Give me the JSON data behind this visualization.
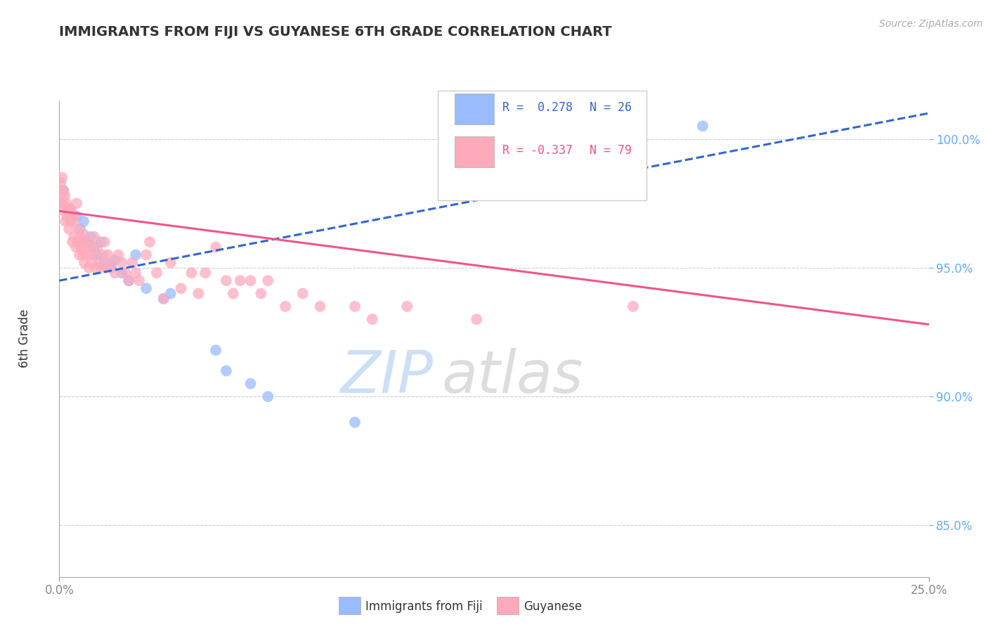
{
  "title": "IMMIGRANTS FROM FIJI VS GUYANESE 6TH GRADE CORRELATION CHART",
  "source": "Source: ZipAtlas.com",
  "ylabel": "6th Grade",
  "xlim": [
    0.0,
    25.0
  ],
  "ylim": [
    83.0,
    101.5
  ],
  "yticks": [
    85.0,
    90.0,
    95.0,
    100.0
  ],
  "ytick_labels": [
    "85.0%",
    "90.0%",
    "95.0%",
    "100.0%"
  ],
  "xticks": [
    0.0,
    25.0
  ],
  "xtick_labels": [
    "0.0%",
    "25.0%"
  ],
  "grid_color": "#cccccc",
  "background_color": "#ffffff",
  "series": [
    {
      "name": "Immigrants from Fiji",
      "color": "#99bbff",
      "R": 0.278,
      "N": 26,
      "points": [
        [
          0.05,
          97.5
        ],
        [
          0.12,
          98.0
        ],
        [
          0.3,
          97.3
        ],
        [
          0.5,
          97.0
        ],
        [
          0.6,
          96.5
        ],
        [
          0.7,
          96.8
        ],
        [
          0.8,
          96.0
        ],
        [
          0.9,
          96.2
        ],
        [
          1.0,
          95.8
        ],
        [
          1.1,
          95.5
        ],
        [
          1.2,
          96.0
        ],
        [
          1.3,
          95.2
        ],
        [
          1.5,
          95.0
        ],
        [
          1.6,
          95.3
        ],
        [
          1.8,
          94.8
        ],
        [
          2.0,
          94.5
        ],
        [
          2.2,
          95.5
        ],
        [
          2.5,
          94.2
        ],
        [
          3.0,
          93.8
        ],
        [
          3.2,
          94.0
        ],
        [
          4.5,
          91.8
        ],
        [
          4.8,
          91.0
        ],
        [
          5.5,
          90.5
        ],
        [
          6.0,
          90.0
        ],
        [
          8.5,
          89.0
        ],
        [
          18.5,
          100.5
        ]
      ],
      "trend_x": [
        0.0,
        25.0
      ],
      "trend_y": [
        94.5,
        101.0
      ],
      "trend_color": "#3366cc",
      "trend_style": "--"
    },
    {
      "name": "Guyanese",
      "color": "#ffaabb",
      "R": -0.337,
      "N": 79,
      "points": [
        [
          0.04,
          98.3
        ],
        [
          0.06,
          97.8
        ],
        [
          0.08,
          98.5
        ],
        [
          0.1,
          97.5
        ],
        [
          0.12,
          98.0
        ],
        [
          0.14,
          97.2
        ],
        [
          0.16,
          97.8
        ],
        [
          0.18,
          96.8
        ],
        [
          0.2,
          97.5
        ],
        [
          0.22,
          97.0
        ],
        [
          0.25,
          97.3
        ],
        [
          0.28,
          96.5
        ],
        [
          0.3,
          97.0
        ],
        [
          0.32,
          96.8
        ],
        [
          0.35,
          97.2
        ],
        [
          0.38,
          96.0
        ],
        [
          0.4,
          96.8
        ],
        [
          0.42,
          96.2
        ],
        [
          0.45,
          97.0
        ],
        [
          0.48,
          95.8
        ],
        [
          0.5,
          97.5
        ],
        [
          0.52,
          96.0
        ],
        [
          0.55,
          96.5
        ],
        [
          0.58,
          95.5
        ],
        [
          0.6,
          96.2
        ],
        [
          0.62,
          95.8
        ],
        [
          0.65,
          96.0
        ],
        [
          0.68,
          95.5
        ],
        [
          0.7,
          96.3
        ],
        [
          0.72,
          95.2
        ],
        [
          0.75,
          95.8
        ],
        [
          0.8,
          95.5
        ],
        [
          0.82,
          96.0
        ],
        [
          0.85,
          95.0
        ],
        [
          0.9,
          95.8
        ],
        [
          0.92,
          95.2
        ],
        [
          0.95,
          95.5
        ],
        [
          1.0,
          96.2
        ],
        [
          1.05,
          95.0
        ],
        [
          1.1,
          95.8
        ],
        [
          1.15,
          95.2
        ],
        [
          1.2,
          95.0
        ],
        [
          1.25,
          95.5
        ],
        [
          1.3,
          96.0
        ],
        [
          1.35,
          95.0
        ],
        [
          1.4,
          95.5
        ],
        [
          1.5,
          95.2
        ],
        [
          1.6,
          94.8
        ],
        [
          1.7,
          95.5
        ],
        [
          1.8,
          95.2
        ],
        [
          1.9,
          94.8
        ],
        [
          2.0,
          94.5
        ],
        [
          2.1,
          95.2
        ],
        [
          2.2,
          94.8
        ],
        [
          2.3,
          94.5
        ],
        [
          2.5,
          95.5
        ],
        [
          2.6,
          96.0
        ],
        [
          2.8,
          94.8
        ],
        [
          3.0,
          93.8
        ],
        [
          3.2,
          95.2
        ],
        [
          3.5,
          94.2
        ],
        [
          3.8,
          94.8
        ],
        [
          4.0,
          94.0
        ],
        [
          4.2,
          94.8
        ],
        [
          4.5,
          95.8
        ],
        [
          4.8,
          94.5
        ],
        [
          5.0,
          94.0
        ],
        [
          5.2,
          94.5
        ],
        [
          5.5,
          94.5
        ],
        [
          5.8,
          94.0
        ],
        [
          6.0,
          94.5
        ],
        [
          6.5,
          93.5
        ],
        [
          7.0,
          94.0
        ],
        [
          7.5,
          93.5
        ],
        [
          8.5,
          93.5
        ],
        [
          9.0,
          93.0
        ],
        [
          10.0,
          93.5
        ],
        [
          12.0,
          93.0
        ],
        [
          16.5,
          93.5
        ]
      ],
      "trend_x": [
        0.0,
        25.0
      ],
      "trend_y": [
        97.2,
        92.8
      ],
      "trend_color": "#ee5588",
      "trend_style": "-"
    }
  ],
  "legend_r_entries": [
    {
      "label": "R =  0.278",
      "N_label": "N = 26",
      "color": "#99bbff"
    },
    {
      "label": "R = -0.337",
      "N_label": "N = 79",
      "color": "#ffaabb"
    }
  ],
  "bottom_legend": [
    {
      "label": "Immigrants from Fiji",
      "color": "#99bbff"
    },
    {
      "label": "Guyanese",
      "color": "#ffaabb"
    }
  ],
  "watermark_zip_color": "#c5daf5",
  "watermark_atlas_color": "#d8d8d8",
  "title_color": "#333333",
  "axis_color": "#aaaaaa",
  "tick_color": "#888888",
  "right_tick_color": "#66aaff"
}
